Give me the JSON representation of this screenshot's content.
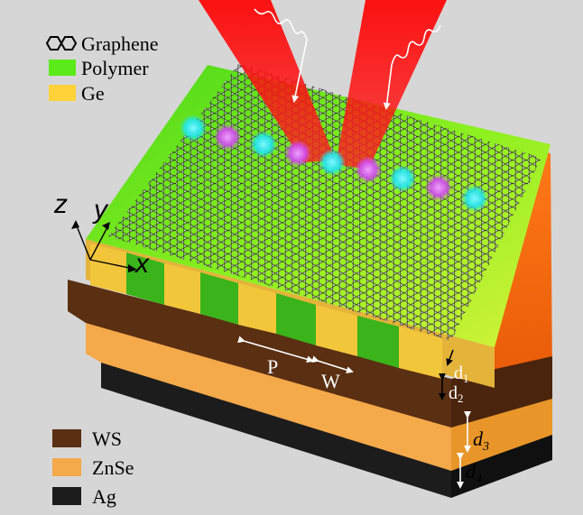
{
  "legend_top": [
    {
      "label": "Graphene",
      "icon": "hexagon-pair-icon",
      "color": "#000000"
    },
    {
      "label": "Polymer",
      "color": "#5bea1a"
    },
    {
      "label": "Ge",
      "color": "#ffd23a"
    }
  ],
  "legend_bottom": [
    {
      "label": "WS",
      "color": "#5a2f12"
    },
    {
      "label": "ZnSe",
      "color": "#f4a94a"
    },
    {
      "label": "Ag",
      "color": "#1c1c1c"
    }
  ],
  "axes": {
    "z": "z",
    "y": "y",
    "x": "x"
  },
  "dimensions": {
    "period": "P",
    "width": "W",
    "d1": {
      "base": "d",
      "sub": "1"
    },
    "d2": {
      "base": "d",
      "sub": "2"
    },
    "d3": {
      "base": "d",
      "sub": "3"
    },
    "d4": {
      "base": "d",
      "sub": "4"
    }
  },
  "colors": {
    "background": "#d6d6d6",
    "laser": "#ff0a0a",
    "cyan_spot": "#1fe6f2",
    "magenta_spot": "#d24af2",
    "polymer": "#5bea1a",
    "ge": "#ffd23a",
    "ws": "#5a2f12",
    "znse": "#f4a94a",
    "ag": "#1c1c1c",
    "side_orange": "#f26a10"
  }
}
